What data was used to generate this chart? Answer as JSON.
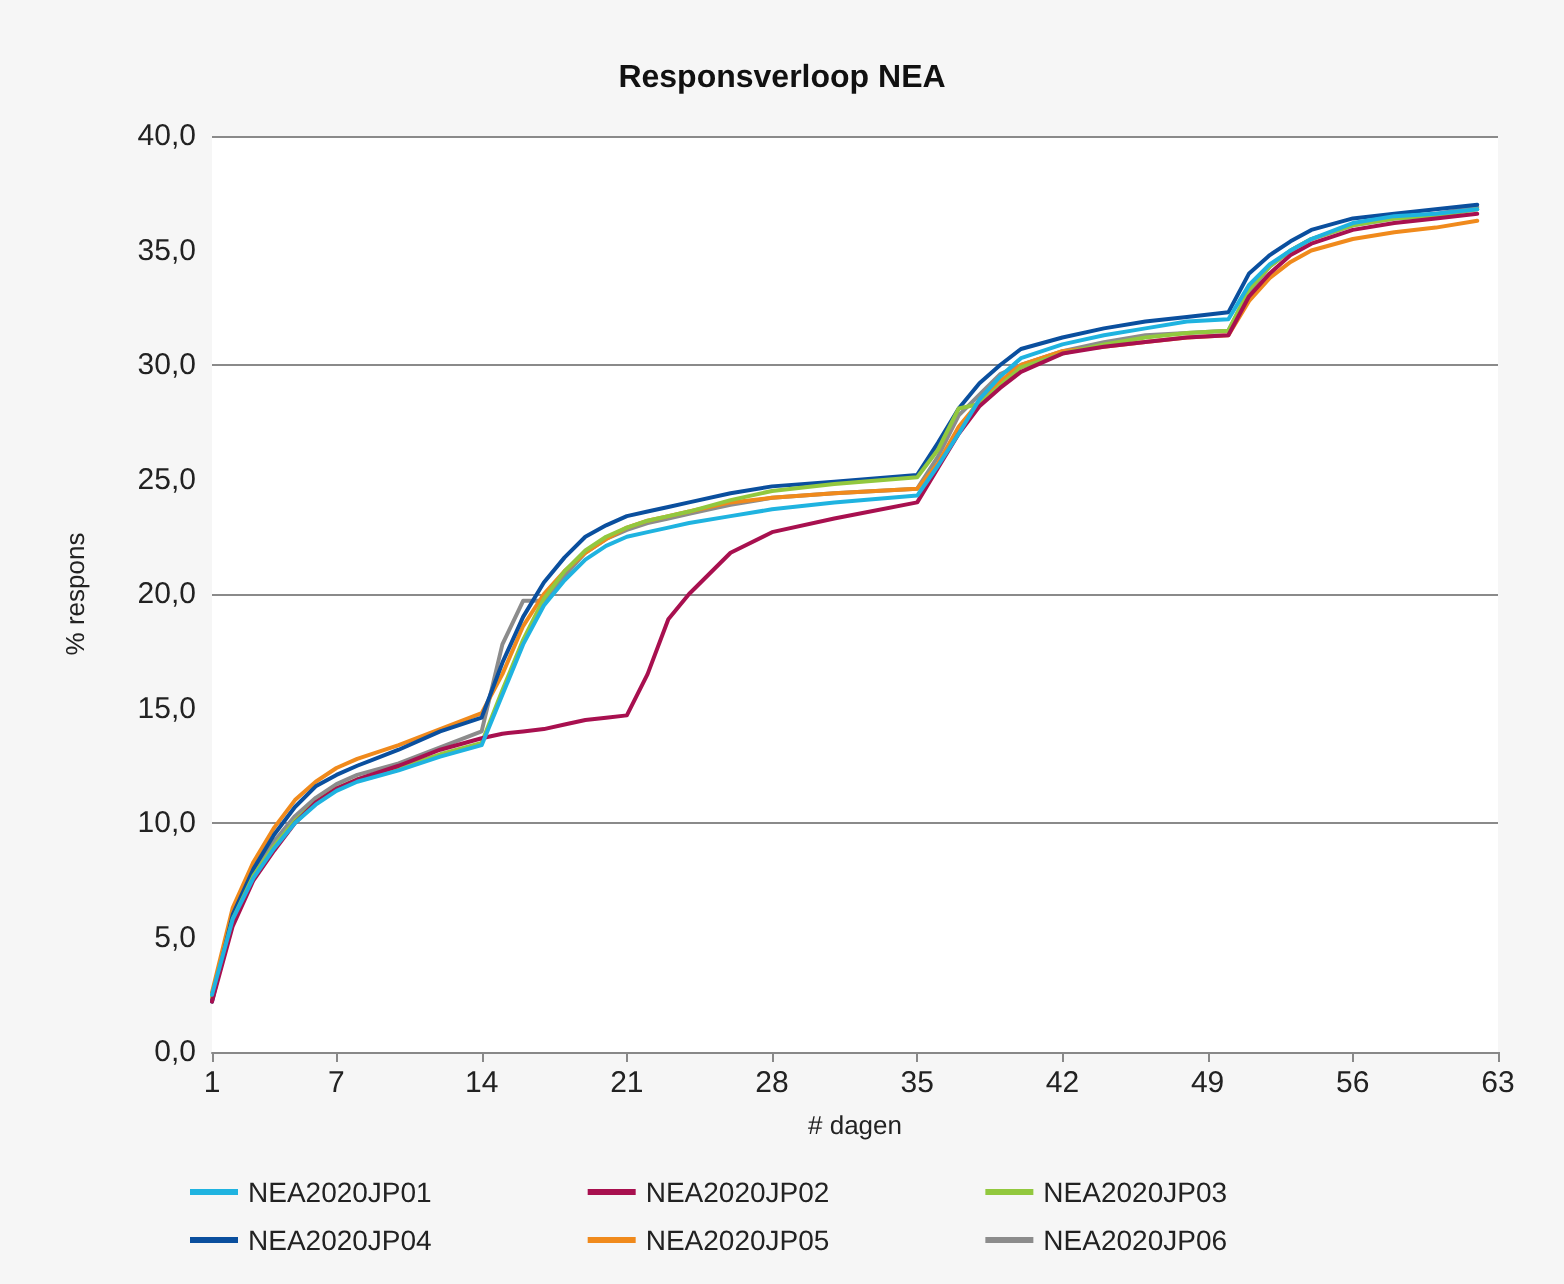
{
  "chart_data": {
    "type": "line",
    "title": "Responsverloop NEA",
    "xlabel": "# dagen",
    "ylabel": "% respons",
    "x": [
      1,
      2,
      3,
      4,
      5,
      6,
      7,
      8,
      10,
      12,
      14,
      15,
      16,
      17,
      18,
      19,
      20,
      21,
      22,
      23,
      24,
      26,
      28,
      31,
      35,
      36,
      37,
      38,
      39,
      40,
      42,
      44,
      46,
      48,
      50,
      51,
      52,
      53,
      54,
      56,
      58,
      60,
      62
    ],
    "xlim": [
      1,
      63
    ],
    "xticks": [
      1,
      7,
      14,
      21,
      28,
      35,
      42,
      49,
      56,
      63
    ],
    "ylim": [
      0,
      40
    ],
    "yticks": [
      {
        "value": 0,
        "label": "0,0"
      },
      {
        "value": 5,
        "label": "5,0"
      },
      {
        "value": 10,
        "label": "10,0"
      },
      {
        "value": 15,
        "label": "15,0"
      },
      {
        "value": 20,
        "label": "20,0"
      },
      {
        "value": 25,
        "label": "25,0"
      },
      {
        "value": 30,
        "label": "30,0"
      },
      {
        "value": 35,
        "label": "35,0"
      },
      {
        "value": 40,
        "label": "40,0"
      }
    ],
    "grid": "y",
    "legend": "bottom",
    "marker": "none",
    "line_style": "solid",
    "series": [
      {
        "name": "NEA2020JP01",
        "color": "#1fb3e0",
        "values": [
          2.5,
          5.8,
          7.6,
          8.9,
          10.0,
          10.8,
          11.4,
          11.8,
          12.3,
          12.9,
          13.4,
          15.6,
          17.8,
          19.5,
          20.6,
          21.5,
          22.1,
          22.5,
          22.7,
          22.9,
          23.1,
          23.4,
          23.7,
          24.0,
          24.3,
          25.6,
          27.0,
          28.5,
          29.5,
          30.3,
          30.9,
          31.3,
          31.6,
          31.9,
          32.0,
          33.5,
          34.4,
          35.0,
          35.5,
          36.2,
          36.5,
          36.6,
          36.8
        ]
      },
      {
        "name": "NEA2020JP02",
        "color": "#a8104f",
        "values": [
          2.2,
          5.5,
          7.5,
          8.8,
          10.0,
          10.9,
          11.5,
          11.9,
          12.5,
          13.2,
          13.7,
          13.9,
          14.0,
          14.1,
          14.3,
          14.5,
          14.6,
          14.7,
          16.5,
          18.9,
          20.0,
          21.8,
          22.7,
          23.3,
          24.0,
          25.5,
          27.0,
          28.2,
          29.0,
          29.7,
          30.5,
          30.8,
          31.0,
          31.2,
          31.3,
          33.0,
          34.0,
          34.8,
          35.3,
          35.9,
          36.2,
          36.4,
          36.6
        ]
      },
      {
        "name": "NEA2020JP03",
        "color": "#92c83e",
        "values": [
          2.4,
          5.8,
          7.7,
          9.0,
          10.1,
          10.9,
          11.5,
          11.9,
          12.4,
          13.0,
          13.5,
          15.8,
          18.0,
          19.8,
          21.0,
          21.9,
          22.5,
          22.9,
          23.2,
          23.4,
          23.6,
          24.1,
          24.5,
          24.8,
          25.1,
          26.3,
          28.1,
          28.3,
          29.1,
          29.9,
          30.5,
          30.9,
          31.2,
          31.4,
          31.5,
          33.3,
          34.3,
          35.0,
          35.5,
          36.1,
          36.4,
          36.5,
          36.8
        ]
      },
      {
        "name": "NEA2020JP04",
        "color": "#0a4f9e",
        "values": [
          2.2,
          6.0,
          8.0,
          9.5,
          10.7,
          11.6,
          12.1,
          12.5,
          13.2,
          14.0,
          14.6,
          17.0,
          19.0,
          20.5,
          21.6,
          22.5,
          23.0,
          23.4,
          23.6,
          23.8,
          24.0,
          24.4,
          24.7,
          24.9,
          25.2,
          26.6,
          28.1,
          29.2,
          30.0,
          30.7,
          31.2,
          31.6,
          31.9,
          32.1,
          32.3,
          34.0,
          34.8,
          35.4,
          35.9,
          36.4,
          36.6,
          36.8,
          37.0
        ]
      },
      {
        "name": "NEA2020JP05",
        "color": "#f08a1c",
        "values": [
          2.6,
          6.3,
          8.3,
          9.8,
          11.0,
          11.8,
          12.4,
          12.8,
          13.4,
          14.1,
          14.8,
          16.5,
          18.6,
          20.0,
          21.0,
          21.8,
          22.4,
          22.9,
          23.2,
          23.4,
          23.6,
          24.0,
          24.2,
          24.4,
          24.6,
          25.7,
          27.3,
          28.4,
          29.3,
          30.0,
          30.6,
          30.8,
          31.0,
          31.2,
          31.3,
          32.8,
          33.8,
          34.5,
          35.0,
          35.5,
          35.8,
          36.0,
          36.3
        ]
      },
      {
        "name": "NEA2020JP06",
        "color": "#8c8c8c",
        "values": [
          2.3,
          5.9,
          7.8,
          9.2,
          10.3,
          11.1,
          11.7,
          12.1,
          12.6,
          13.3,
          14.0,
          17.8,
          19.7,
          19.7,
          20.8,
          21.8,
          22.4,
          22.8,
          23.1,
          23.3,
          23.5,
          23.9,
          24.2,
          24.4,
          24.6,
          26.0,
          27.8,
          28.7,
          29.6,
          30.0,
          30.6,
          31.0,
          31.3,
          31.4,
          31.5,
          33.2,
          34.3,
          35.0,
          35.5,
          36.1,
          36.4,
          36.6,
          36.9
        ]
      }
    ]
  }
}
